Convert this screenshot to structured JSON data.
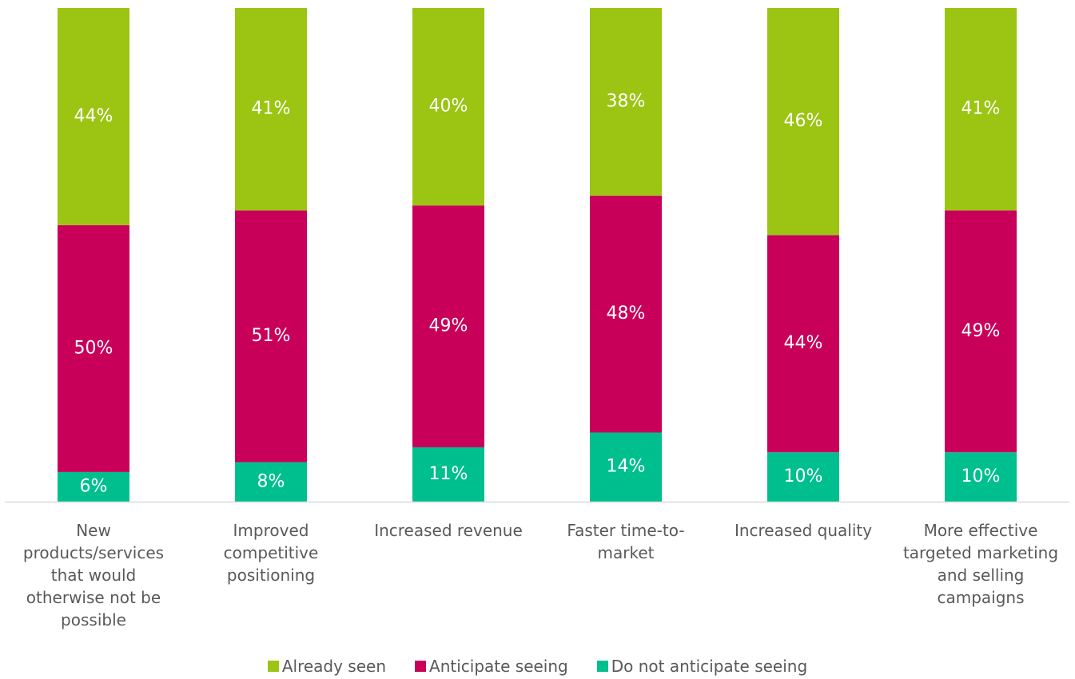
{
  "chart_data": {
    "type": "stacked_bar",
    "categories": [
      "New products/services that would otherwise not be possible",
      "Improved competitive positioning",
      "Increased revenue",
      "Faster time-to-market",
      "Increased quality",
      "More effective targeted marketing and selling campaigns"
    ],
    "series": [
      {
        "name": "Already seen",
        "color": "#9bc413",
        "values": [
          44,
          41,
          40,
          38,
          46,
          41
        ],
        "value_labels": [
          "44%",
          "41%",
          "40%",
          "38%",
          "46%",
          "41%"
        ]
      },
      {
        "name": "Anticipate seeing",
        "color": "#c8005a",
        "values": [
          50,
          51,
          49,
          48,
          44,
          49
        ],
        "value_labels": [
          "50%",
          "51%",
          "49%",
          "48%",
          "44%",
          "49%"
        ]
      },
      {
        "name": "Do not anticipate seeing",
        "color": "#00bf8f",
        "values": [
          6,
          8,
          11,
          14,
          10,
          10
        ],
        "value_labels": [
          "6%",
          "8%",
          "11%",
          "14%",
          "10%",
          "10%"
        ]
      }
    ]
  }
}
